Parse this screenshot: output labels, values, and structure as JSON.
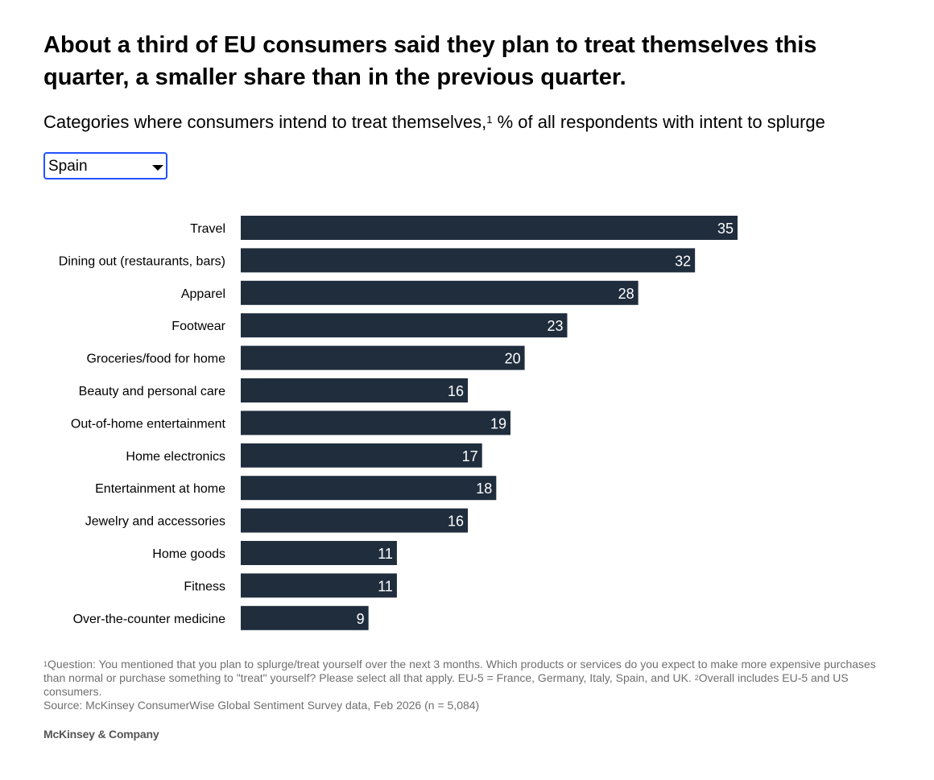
{
  "header": {
    "title": "About a third of EU consumers said they plan to treat themselves this quarter, a smaller share than in the previous quarter.",
    "subtitle_before": "Categories where consumers intend to treat themselves,",
    "subtitle_sup": "1",
    "subtitle_after": " % of all respondents with intent to splurge"
  },
  "filter": {
    "selected": "Spain"
  },
  "chart_data": {
    "type": "bar",
    "orientation": "horizontal",
    "title": "Categories where consumers intend to treat themselves, % of all respondents with intent to splurge",
    "xlabel": "",
    "ylabel": "",
    "xlim": [
      0,
      35
    ],
    "grid": false,
    "legend": "none",
    "categories": [
      "Travel",
      "Dining out (restaurants, bars)",
      "Apparel",
      "Footwear",
      "Groceries/food for home",
      "Beauty and personal care",
      "Out-of-home entertainment",
      "Home electronics",
      "Entertainment at home",
      "Jewelry and accessories",
      "Home goods",
      "Fitness",
      "Over-the-counter medicine"
    ],
    "values": [
      35,
      32,
      28,
      23,
      20,
      16,
      19,
      17,
      18,
      16,
      11,
      11,
      9
    ],
    "bar_color": "#1f2d3d",
    "label_color": "#ffffff"
  },
  "footnotes": {
    "note1_sup": "1",
    "note1": "Question: You mentioned that you plan to splurge/treat yourself over the next 3 months. Which products or services do you expect to make more expensive purchases than normal or purchase something to \"treat\" yourself? Please select all that apply. EU-5 = France, Germany, Italy, Spain, and UK. ",
    "note2_sup": "2",
    "note2": "Overall includes EU-5 and US consumers.",
    "source": "Source: McKinsey ConsumerWise Global Sentiment Survey data, Feb 2026 (n = 5,084)"
  },
  "brand": {
    "name": "McKinsey & Company"
  }
}
